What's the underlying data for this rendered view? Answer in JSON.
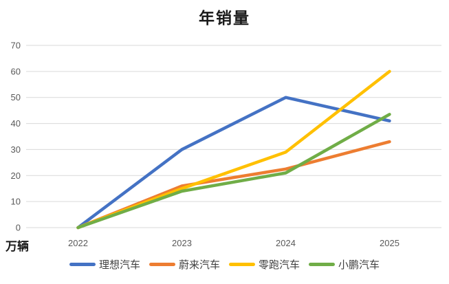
{
  "chart_data": {
    "type": "line",
    "title": "年销量",
    "ylabel": "万辆",
    "xlabel": "",
    "categories": [
      "2022",
      "2023",
      "2024",
      "2025"
    ],
    "series": [
      {
        "name": "理想汽车",
        "color": "#4472C4",
        "values": [
          0,
          30,
          50,
          41
        ]
      },
      {
        "name": "蔚来汽车",
        "color": "#ED7D31",
        "values": [
          0,
          16,
          22.5,
          33
        ]
      },
      {
        "name": "零跑汽车",
        "color": "#FFC000",
        "values": [
          0,
          15,
          29,
          60
        ]
      },
      {
        "name": "小鹏汽车",
        "color": "#70AD47",
        "values": [
          0,
          14,
          21,
          43.5
        ]
      }
    ],
    "ylim": [
      0,
      70
    ],
    "y_ticks": [
      0,
      10,
      20,
      30,
      40,
      50,
      60,
      70
    ],
    "grid": true,
    "legend_position": "bottom",
    "gridline_color": "#D9D9D9",
    "axis_text_color": "#595959"
  }
}
